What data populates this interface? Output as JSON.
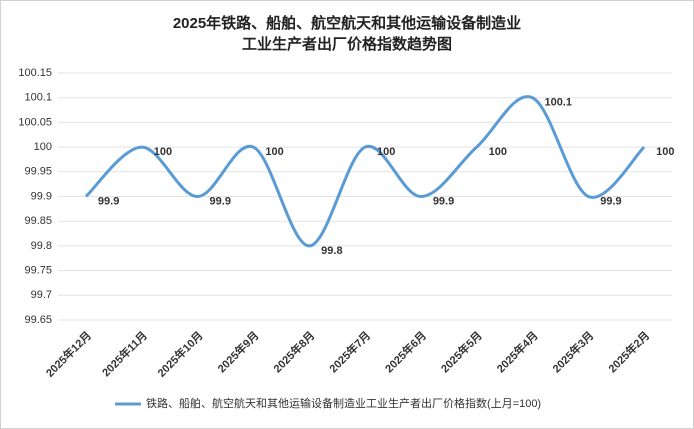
{
  "chart_data": {
    "type": "line",
    "title": [
      "2025年铁路、船舶、航空航天和其他运输设备制造业",
      "工业生产者出厂价格指数趋势图"
    ],
    "categories": [
      "2025年12月",
      "2025年11月",
      "2025年10月",
      "2025年9月",
      "2025年8月",
      "2025年7月",
      "2025年6月",
      "2025年5月",
      "2025年4月",
      "2025年3月",
      "2025年2月"
    ],
    "series": [
      {
        "name": "铁路、船舶、航空航天和其他运输设备制造业工业生产者出厂价格指数(上月=100)",
        "color": "#5b9bd5",
        "values": [
          99.9,
          100,
          99.9,
          100,
          99.8,
          100,
          99.9,
          100,
          100.1,
          99.9,
          100
        ]
      }
    ],
    "ylim": [
      99.65,
      100.15
    ],
    "yticks": [
      99.65,
      99.7,
      99.75,
      99.8,
      99.85,
      99.9,
      99.95,
      100,
      100.05,
      100.1,
      100.15
    ],
    "grid": true,
    "smooth": true,
    "legend": "bottom"
  }
}
